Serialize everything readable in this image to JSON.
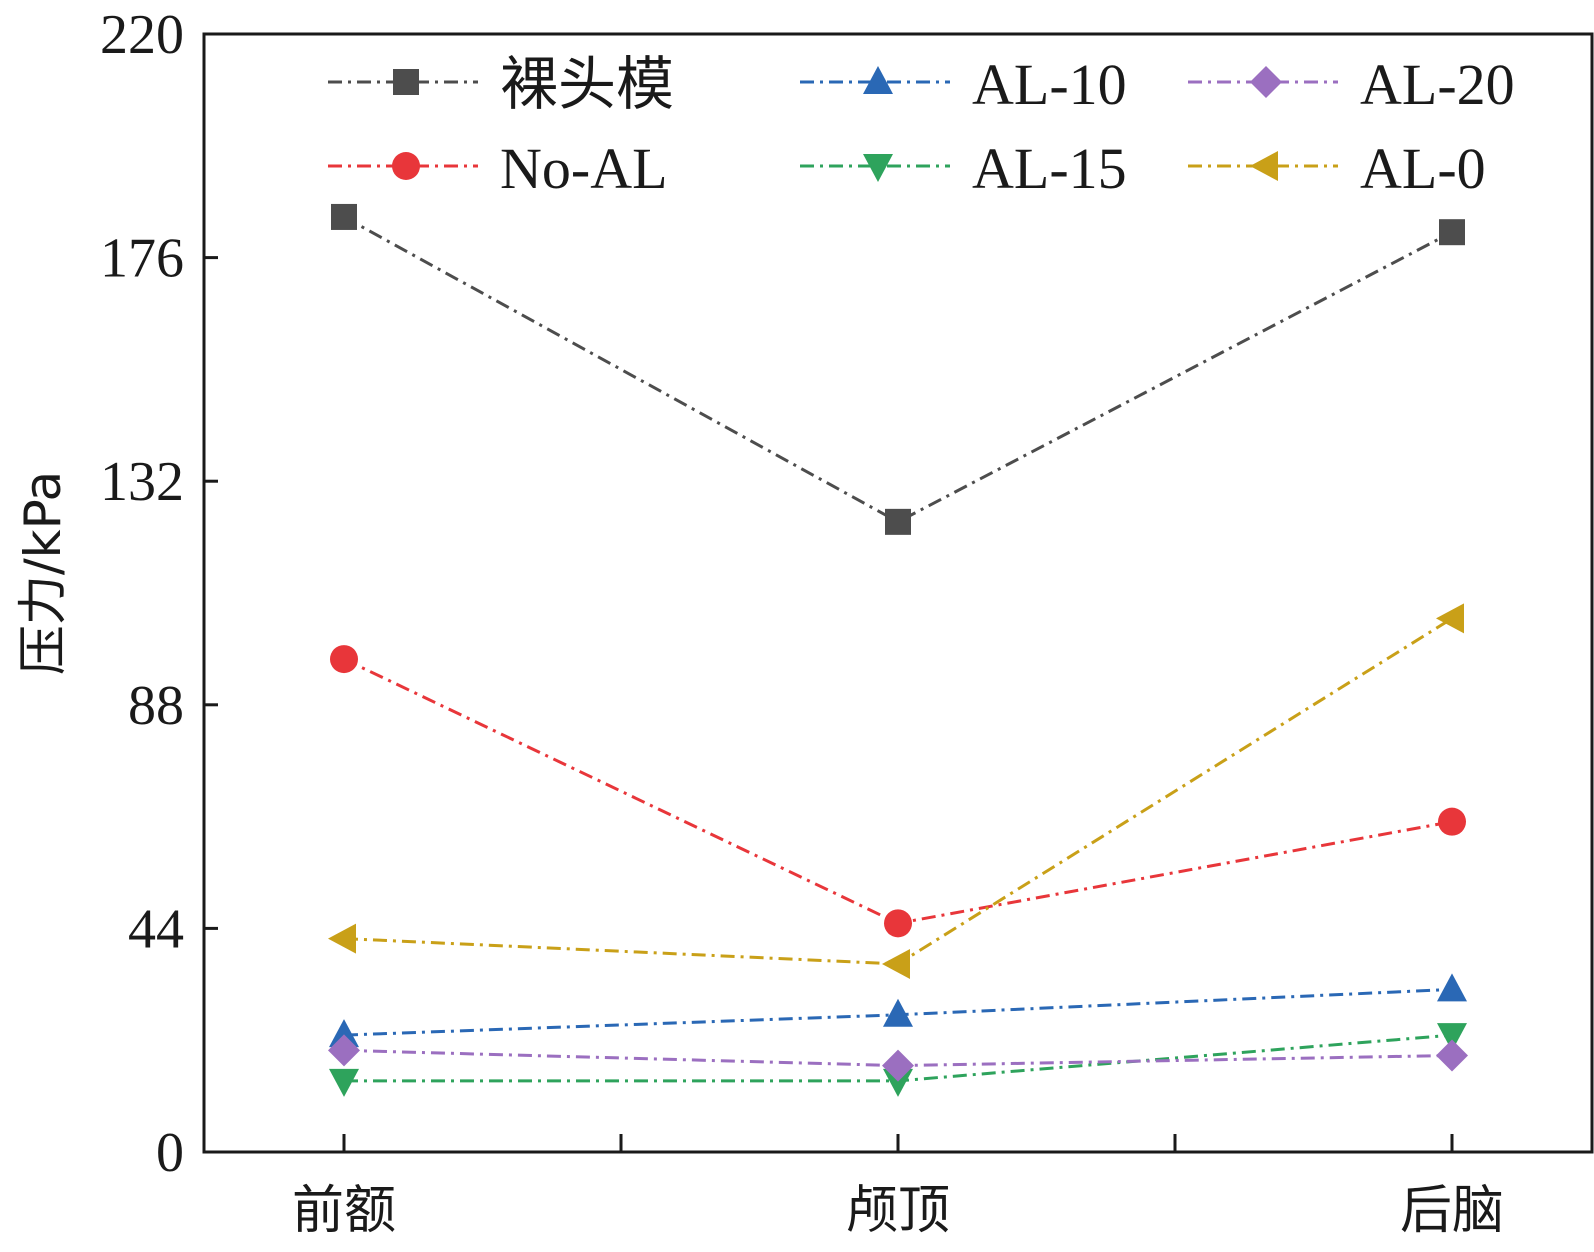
{
  "chart_data": {
    "type": "line",
    "categories": [
      "前额",
      "颅顶",
      "后脑"
    ],
    "ylabel": "压力/kPa",
    "ylim": [
      0,
      220
    ],
    "yticks": [
      0,
      44,
      88,
      132,
      176,
      220
    ],
    "grid": false,
    "legend_position": "top",
    "series": [
      {
        "name": "裸头模",
        "values": [
          184,
          124,
          181
        ],
        "color": "#4d4d4d",
        "marker": "square"
      },
      {
        "name": "No-AL",
        "values": [
          97,
          45,
          65
        ],
        "color": "#e8363a",
        "marker": "circle"
      },
      {
        "name": "AL-10",
        "values": [
          23,
          27,
          32
        ],
        "color": "#2a68b5",
        "marker": "triangle-up"
      },
      {
        "name": "AL-15",
        "values": [
          14,
          14,
          23
        ],
        "color": "#2ea35c",
        "marker": "triangle-down"
      },
      {
        "name": "AL-20",
        "values": [
          20,
          17,
          19
        ],
        "color": "#9b6fc0",
        "marker": "diamond"
      },
      {
        "name": "AL-0",
        "values": [
          42,
          37,
          105
        ],
        "color": "#c9a018",
        "marker": "triangle-left"
      }
    ]
  }
}
